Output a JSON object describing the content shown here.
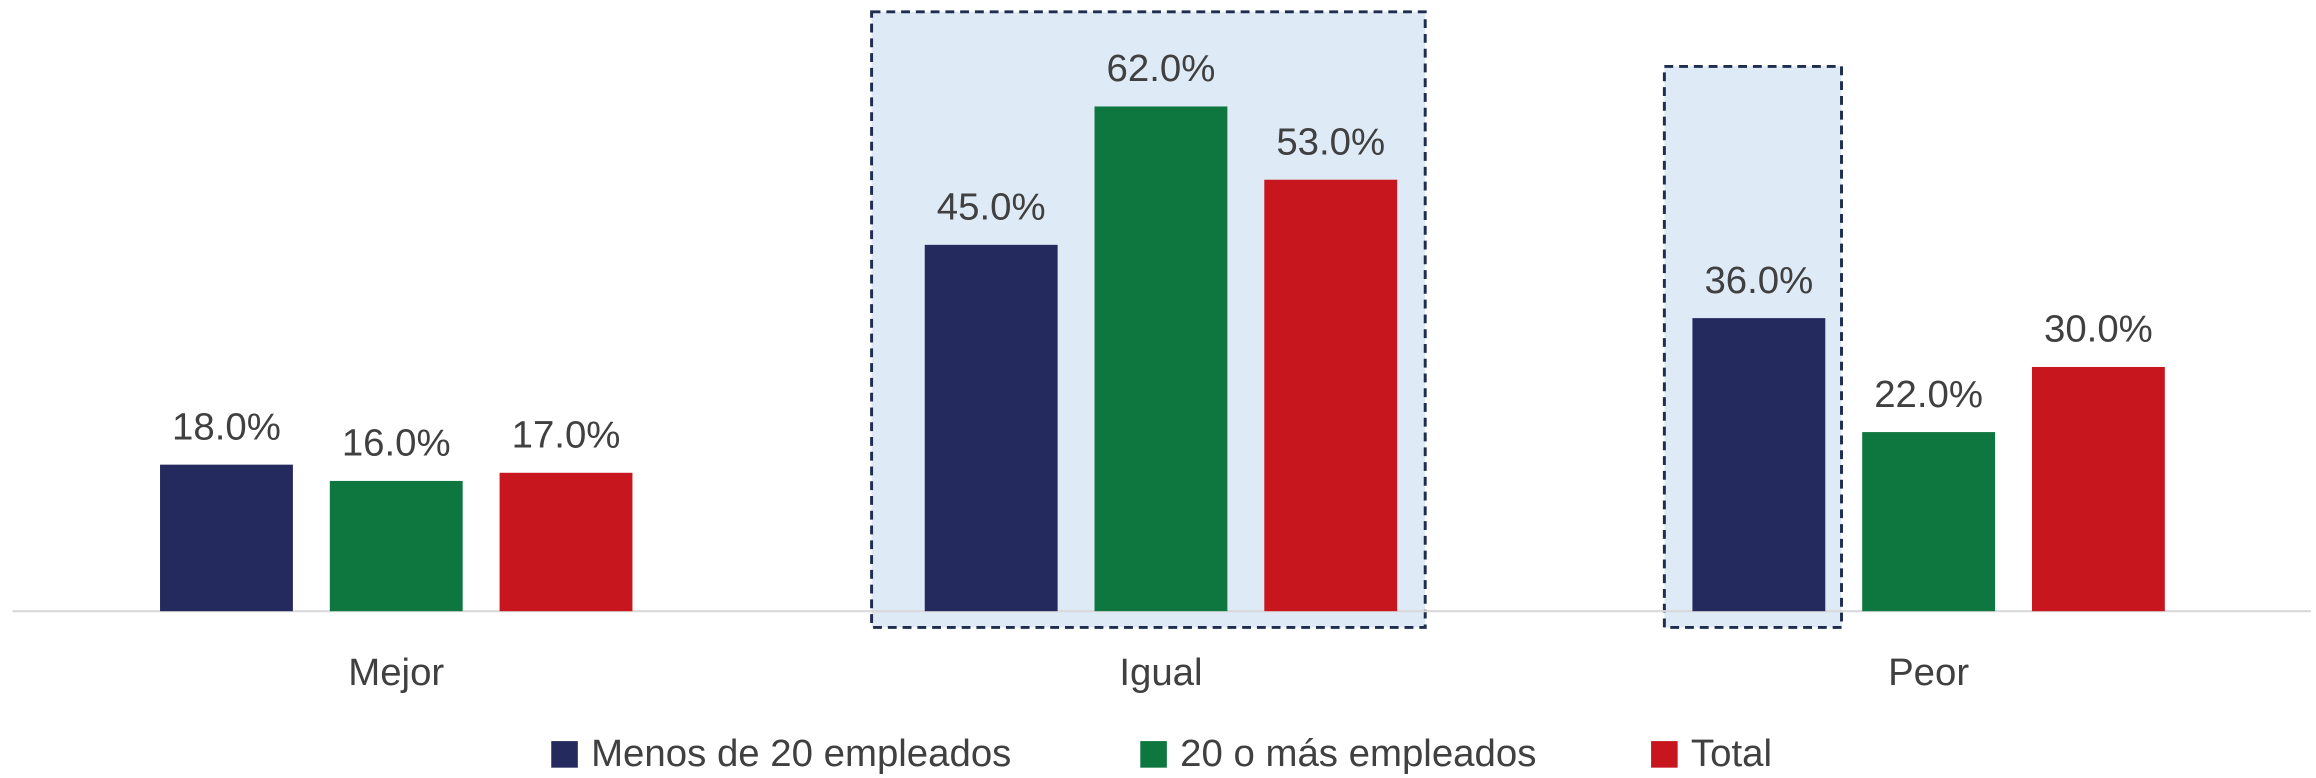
{
  "chart_data": {
    "type": "bar",
    "categories": [
      "Mejor",
      "Igual",
      "Peor"
    ],
    "series": [
      {
        "name": "Menos de 20 empleados",
        "color": "#252a5e",
        "values": [
          18,
          45,
          36
        ],
        "value_labels": [
          "18.0%",
          "45.0%",
          "36.0%"
        ]
      },
      {
        "name": "20 o más empleados",
        "color": "#0e773f",
        "values": [
          16,
          62,
          22
        ],
        "value_labels": [
          "16.0%",
          "62.0%",
          "22.0%"
        ]
      },
      {
        "name": "Total",
        "color": "#c8161e",
        "values": [
          17,
          53,
          30
        ],
        "value_labels": [
          "17.0%",
          "53.0%",
          "30.0%"
        ]
      }
    ],
    "ylim": [
      0,
      70
    ]
  }
}
